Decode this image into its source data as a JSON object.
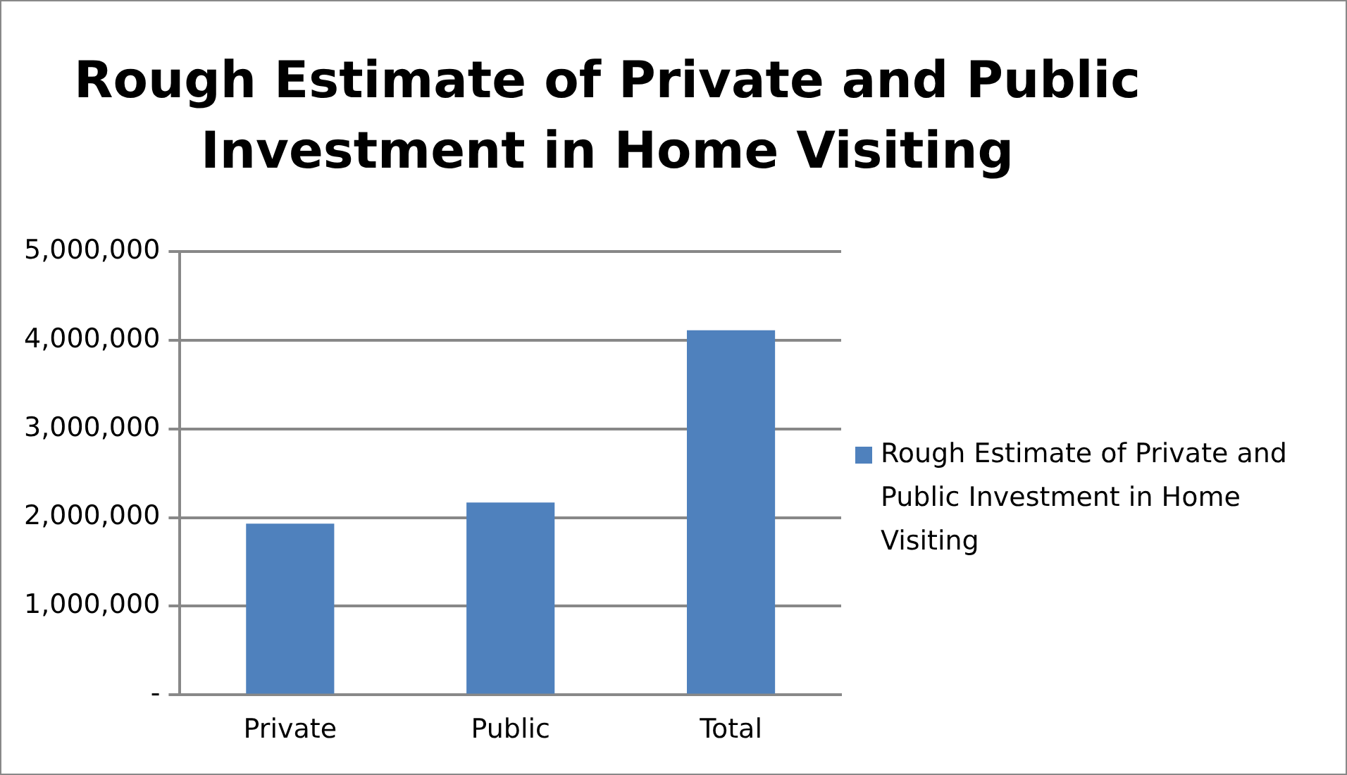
{
  "chart_data": {
    "type": "bar",
    "title": "Rough Estimate of Private and Public Investment in Home Visiting",
    "categories": [
      "Private",
      "Public",
      "Total"
    ],
    "series": [
      {
        "name": "Rough Estimate of Private and Public Investment in Home Visiting",
        "color": "#4f81bd",
        "values": [
          1930000,
          2170000,
          4110000
        ]
      }
    ],
    "ylim": [
      0,
      5000000
    ],
    "yticks": [
      {
        "value": 0,
        "label": "-"
      },
      {
        "value": 1000000,
        "label": "1,000,000"
      },
      {
        "value": 2000000,
        "label": "2,000,000"
      },
      {
        "value": 3000000,
        "label": "3,000,000"
      },
      {
        "value": 4000000,
        "label": "4,000,000"
      },
      {
        "value": 5000000,
        "label": "5,000,000"
      }
    ],
    "grid": "y",
    "legend": "right"
  }
}
